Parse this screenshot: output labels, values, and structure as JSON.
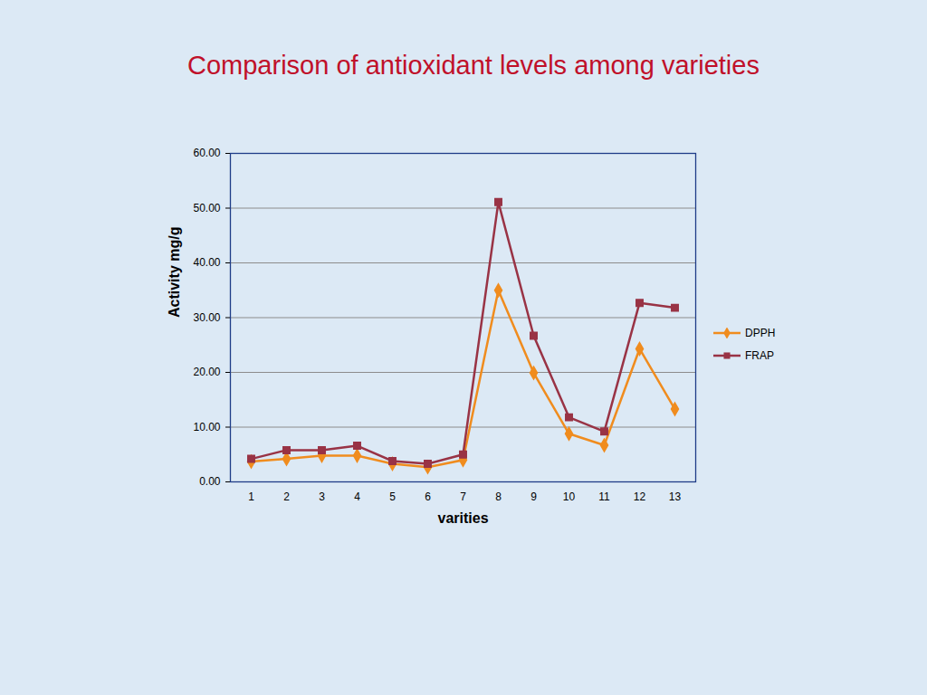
{
  "chart_data": {
    "type": "line",
    "title": "Comparison of antioxidant levels among varieties",
    "x_label": "varities",
    "y_label": "Activity mg/g",
    "categories": [
      "1",
      "2",
      "3",
      "4",
      "5",
      "6",
      "7",
      "8",
      "9",
      "10",
      "11",
      "12",
      "13"
    ],
    "series": [
      {
        "name": "DPPH",
        "color": "#f08c1e",
        "marker": "diamond",
        "values": [
          3.7,
          4.2,
          4.8,
          4.8,
          3.3,
          2.7,
          4.0,
          35.0,
          19.9,
          8.8,
          6.7,
          24.3,
          13.3
        ]
      },
      {
        "name": "FRAP",
        "color": "#993345",
        "marker": "square",
        "values": [
          4.2,
          5.8,
          5.8,
          6.6,
          3.8,
          3.3,
          5.0,
          51.1,
          26.7,
          11.8,
          9.2,
          32.7,
          31.8
        ]
      }
    ],
    "ylim": [
      0,
      60
    ],
    "yticks": [
      {
        "value": 0,
        "label": "0.00"
      },
      {
        "value": 10,
        "label": "10.00"
      },
      {
        "value": 20,
        "label": "20.00"
      },
      {
        "value": 30,
        "label": "30.00"
      },
      {
        "value": 40,
        "label": "40.00"
      },
      {
        "value": 50,
        "label": "50.00"
      },
      {
        "value": 60,
        "label": "60.00"
      }
    ],
    "grid": true,
    "legend": "right"
  }
}
